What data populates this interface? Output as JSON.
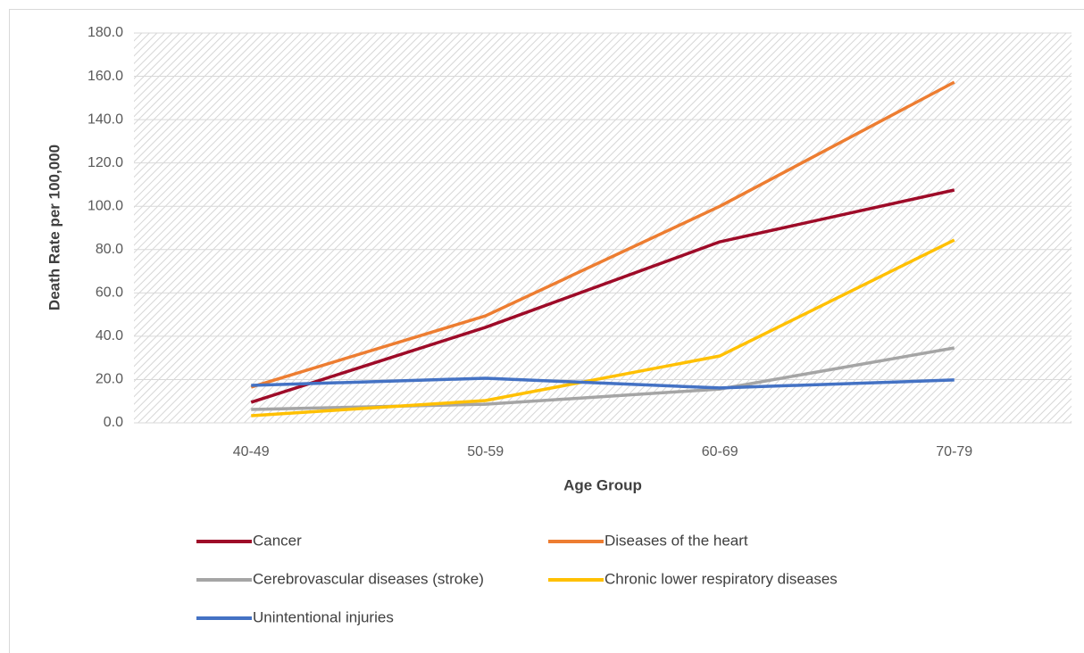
{
  "chart_data": {
    "type": "line",
    "x_label": "Age Group",
    "y_label": "Death Rate per 100,000",
    "categories": [
      "40-49",
      "50-59",
      "60-69",
      "70-79"
    ],
    "series": [
      {
        "name": "Cancer",
        "color": "#9e0b28",
        "values": [
          9.5,
          44.1,
          83.6,
          107.5
        ]
      },
      {
        "name": "Diseases of the heart",
        "color": "#ed7d31",
        "values": [
          16.5,
          49.4,
          100.0,
          157.3
        ]
      },
      {
        "name": "Cerebrovascular diseases (stroke)",
        "color": "#a5a5a5",
        "values": [
          6.2,
          8.6,
          15.6,
          34.6
        ]
      },
      {
        "name": "Chronic lower respiratory diseases",
        "color": "#ffc000",
        "values": [
          3.3,
          10.3,
          30.9,
          84.4
        ]
      },
      {
        "name": "Unintentional injuries",
        "color": "#4472c4",
        "values": [
          17.3,
          20.6,
          16.1,
          19.8
        ]
      }
    ],
    "ylim": [
      0,
      180
    ],
    "yticks": [
      {
        "value": 0,
        "label": "0.0"
      },
      {
        "value": 20,
        "label": "20.0"
      },
      {
        "value": 40,
        "label": "40.0"
      },
      {
        "value": 60,
        "label": "60.0"
      },
      {
        "value": 80,
        "label": "80.0"
      },
      {
        "value": 100,
        "label": "100.0"
      },
      {
        "value": 120,
        "label": "120.0"
      },
      {
        "value": 140,
        "label": "140.0"
      },
      {
        "value": 160,
        "label": "160.0"
      },
      {
        "value": 180,
        "label": "180.0"
      }
    ],
    "grid": true,
    "legend": "bottom"
  }
}
